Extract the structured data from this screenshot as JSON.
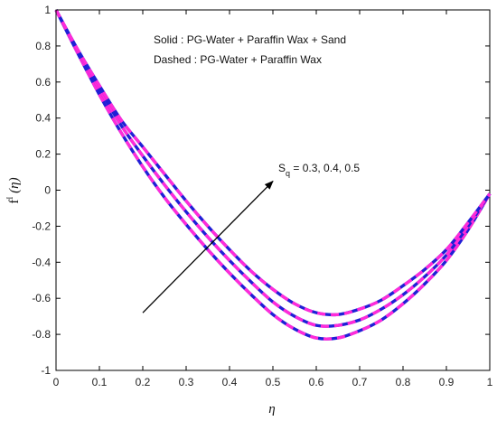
{
  "chart_data": {
    "type": "line",
    "xlabel": "η",
    "ylabel": {
      "main": "f",
      "superscript": "I",
      "arg": " (η)"
    },
    "xlim": [
      0,
      1
    ],
    "ylim": [
      -1,
      1
    ],
    "x_ticks": [
      "0",
      "0.1",
      "0.2",
      "0.3",
      "0.4",
      "0.5",
      "0.6",
      "0.7",
      "0.8",
      "0.9",
      "1"
    ],
    "y_ticks": [
      "1",
      "0.8",
      "0.6",
      "0.4",
      "0.2",
      "0",
      "-0.2",
      "-0.4",
      "-0.6",
      "-0.8",
      "-1"
    ],
    "grid": false,
    "legend": {
      "solid_key": "Solid",
      "solid_text": "  : PG-Water + Paraffin Wax + Sand",
      "dashed_key": "Dashed",
      "dashed_text": " : PG-Water + Paraffin Wax"
    },
    "annotation": {
      "prefix": "S",
      "subscript": "q",
      "text": " = 0.3, 0.4, 0.5",
      "arrow_from": [
        0.2,
        -0.68
      ],
      "arrow_to": [
        0.5,
        0.05
      ]
    },
    "styles": {
      "solid_color": "#1f1fd6",
      "dashed_color": "#ff2bd9"
    },
    "series": [
      {
        "x": [
          0,
          0.05,
          0.1,
          0.15,
          0.2,
          0.25,
          0.3,
          0.35,
          0.4,
          0.45,
          0.5,
          0.55,
          0.6,
          0.65,
          0.7,
          0.75,
          0.8,
          0.85,
          0.9,
          0.95,
          1
        ],
        "y": [
          1,
          0.76,
          0.53,
          0.32,
          0.13,
          -0.04,
          -0.19,
          -0.33,
          -0.46,
          -0.58,
          -0.69,
          -0.77,
          -0.82,
          -0.82,
          -0.78,
          -0.72,
          -0.63,
          -0.52,
          -0.39,
          -0.22,
          -0.02
        ]
      },
      {
        "x": [
          0,
          0.05,
          0.1,
          0.15,
          0.2,
          0.25,
          0.3,
          0.35,
          0.4,
          0.45,
          0.5,
          0.55,
          0.6,
          0.65,
          0.7,
          0.75,
          0.8,
          0.85,
          0.9,
          0.95,
          1
        ],
        "y": [
          1,
          0.77,
          0.56,
          0.36,
          0.19,
          0.03,
          -0.12,
          -0.26,
          -0.39,
          -0.51,
          -0.62,
          -0.7,
          -0.75,
          -0.75,
          -0.72,
          -0.66,
          -0.58,
          -0.48,
          -0.36,
          -0.2,
          -0.02
        ]
      },
      {
        "x": [
          0,
          0.05,
          0.1,
          0.15,
          0.2,
          0.25,
          0.3,
          0.35,
          0.4,
          0.45,
          0.5,
          0.55,
          0.6,
          0.65,
          0.7,
          0.75,
          0.8,
          0.85,
          0.9,
          0.95,
          1
        ],
        "y": [
          1,
          0.78,
          0.58,
          0.39,
          0.24,
          0.09,
          -0.06,
          -0.2,
          -0.33,
          -0.45,
          -0.55,
          -0.63,
          -0.68,
          -0.69,
          -0.66,
          -0.61,
          -0.53,
          -0.44,
          -0.33,
          -0.18,
          -0.02
        ]
      }
    ]
  }
}
